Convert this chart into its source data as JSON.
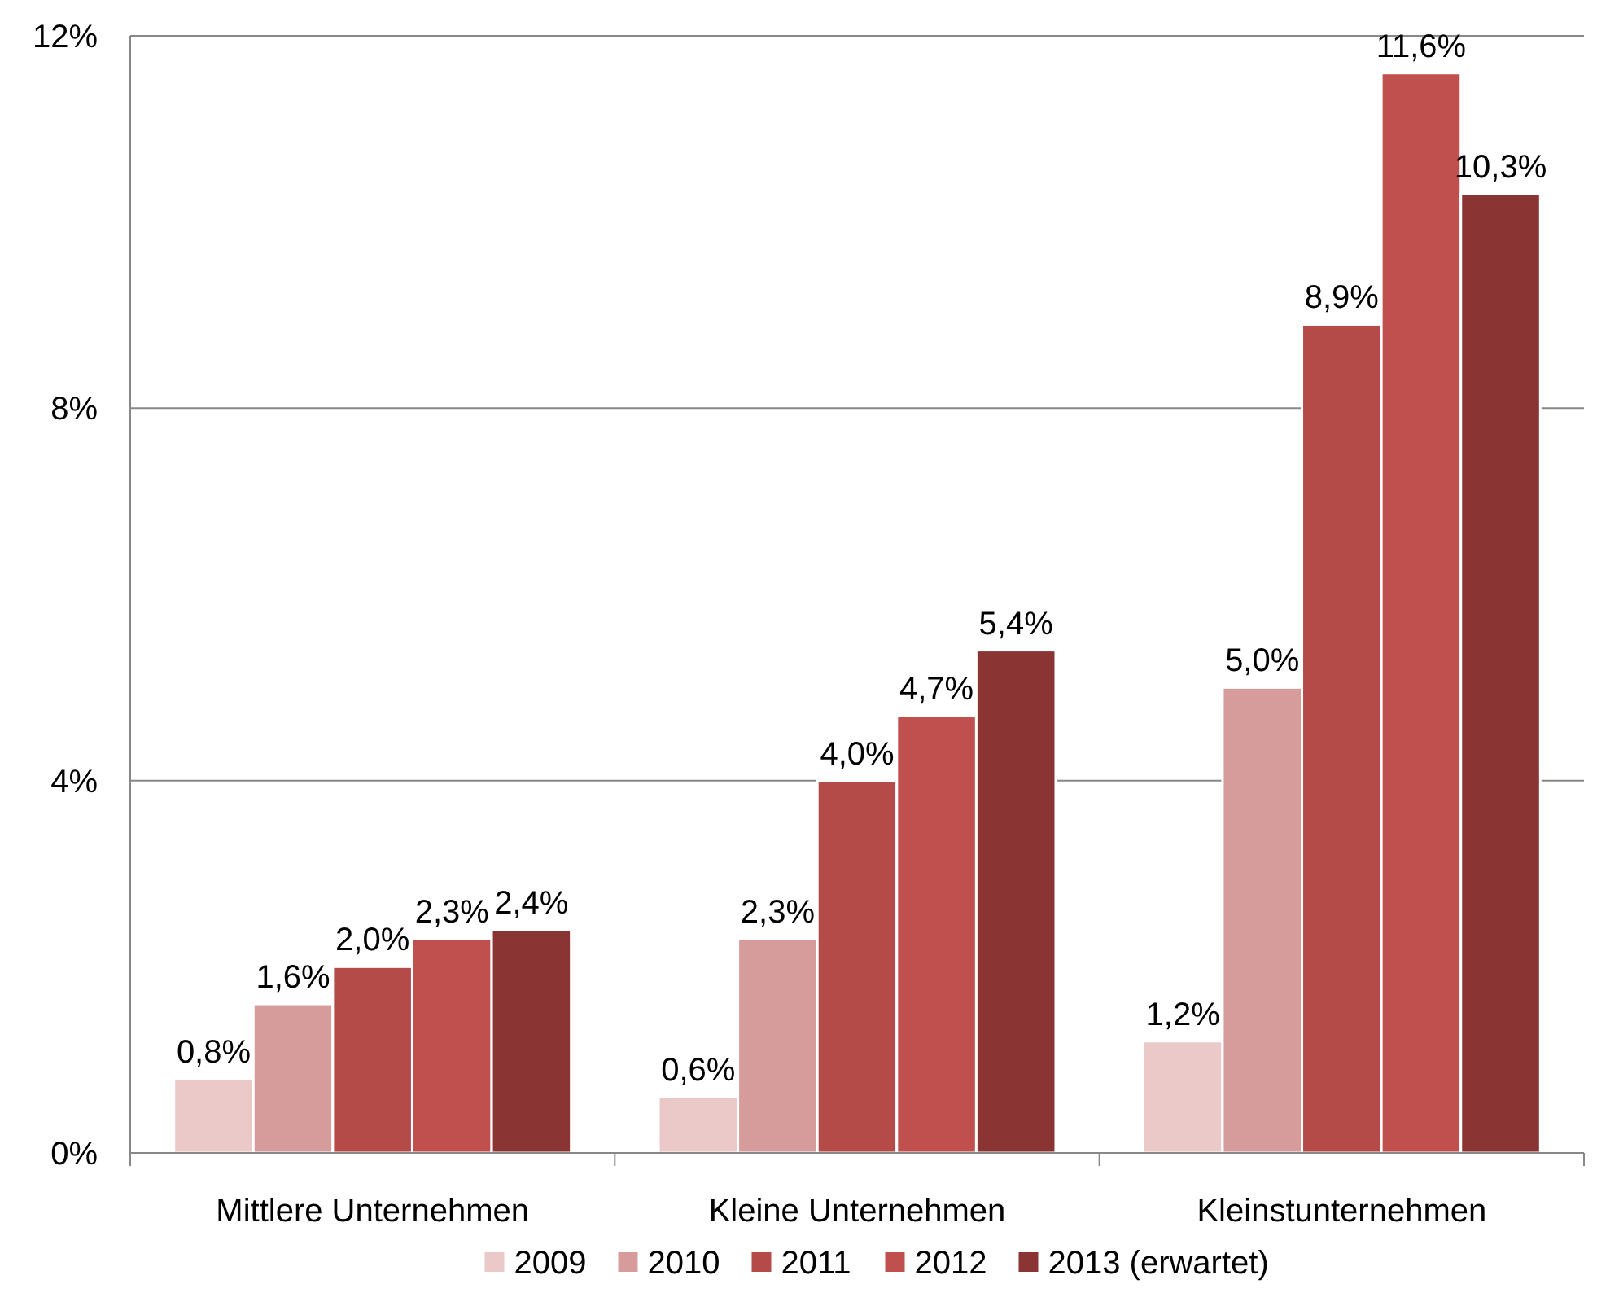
{
  "chart_data": {
    "type": "bar",
    "categories": [
      "Mittlere Unternehmen",
      "Kleine Unternehmen",
      "Kleinstunternehmen"
    ],
    "series": [
      {
        "name": "2009",
        "color": "#ecc9c9",
        "values": [
          0.8,
          0.6,
          1.2
        ],
        "value_labels": [
          "0,8%",
          "0,6%",
          "1,2%"
        ]
      },
      {
        "name": "2010",
        "color": "#d59c9b",
        "values": [
          1.6,
          2.3,
          5.0
        ],
        "value_labels": [
          "1,6%",
          "2,3%",
          "5,0%"
        ]
      },
      {
        "name": "2011",
        "color": "#b44b49",
        "values": [
          2.0,
          4.0,
          8.9
        ],
        "value_labels": [
          "2,0%",
          "4,0%",
          "8,9%"
        ]
      },
      {
        "name": "2012",
        "color": "#c0504d",
        "values": [
          2.3,
          4.7,
          11.6
        ],
        "value_labels": [
          "2,3%",
          "4,7%",
          "11,6%"
        ]
      },
      {
        "name": "2013 (erwartet)",
        "color": "#8b3434",
        "values": [
          2.4,
          5.4,
          10.3
        ],
        "value_labels": [
          "2,4%",
          "5,4%",
          "10,3%"
        ]
      }
    ],
    "ylim": [
      0,
      12
    ],
    "yticks": [
      {
        "value": 0,
        "label": "0%"
      },
      {
        "value": 4,
        "label": "4%"
      },
      {
        "value": 8,
        "label": "8%"
      },
      {
        "value": 12,
        "label": "12%"
      }
    ],
    "grid": "y",
    "legend": "bottom"
  }
}
